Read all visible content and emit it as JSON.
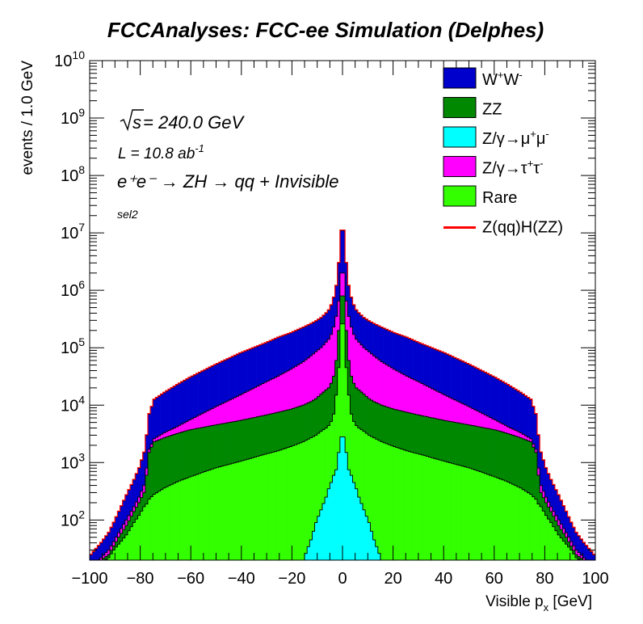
{
  "chart_data": {
    "type": "histogram-stacked",
    "title": "FCCAnalyses: FCC-ee Simulation (Delphes)",
    "xlabel_main": "Visible p",
    "xlabel_sub": "x",
    "xlabel_unit": " [GeV]",
    "ylabel": "events / 1.0 GeV",
    "xlim": [
      -100,
      100
    ],
    "ylim": [
      20,
      10000000000
    ],
    "yscale": "log",
    "bin_width": 1.0,
    "x_ticks": [
      -100,
      -80,
      -60,
      -40,
      -20,
      0,
      20,
      40,
      60,
      80,
      100
    ],
    "x_tick_labels": [
      "−100",
      "−80",
      "−60",
      "−40",
      "−20",
      "0",
      "20",
      "40",
      "60",
      "80",
      "100"
    ],
    "y_tick_exponents": [
      2,
      3,
      4,
      5,
      6,
      7,
      8,
      9,
      10
    ],
    "legend_position": "top-right",
    "annotations": {
      "sqrt_s": "s",
      "energy": " = 240.0 GeV",
      "lumi_base": "L = 10.8 ab",
      "lumi_exp": "-1",
      "process": "e⁺e⁻ → ZH → qq + Invisible",
      "selection": "sel2"
    },
    "cumulative_profiles": {
      "x": [
        0,
        1,
        2,
        3,
        4,
        5,
        6,
        8,
        10,
        12,
        15,
        20,
        25,
        30,
        40,
        50,
        60,
        65,
        70,
        74,
        76,
        77,
        78,
        80,
        82,
        85,
        88,
        90,
        92,
        95,
        98,
        100
      ],
      "Z/gamma->mumu": [
        2800,
        1500,
        750,
        600,
        450,
        350,
        250,
        150,
        90,
        45,
        20
      ],
      "Rare": [
        260000,
        45000,
        15000,
        7000,
        5200,
        4400,
        4000,
        3500,
        3000,
        2700,
        2300,
        1900,
        1600,
        1400,
        1050,
        800,
        560,
        460,
        360,
        280,
        230,
        190,
        170,
        120,
        90,
        55,
        38,
        30,
        22,
        18,
        14,
        12
      ],
      "ZZ": [
        800000,
        200000,
        60000,
        32000,
        24000,
        20000,
        18500,
        15500,
        13000,
        11500,
        10000,
        8500,
        7500,
        6700,
        5400,
        4500,
        3700,
        3200,
        2700,
        2300,
        1500,
        600,
        300,
        200,
        140,
        80,
        50,
        35,
        25,
        20,
        15,
        13
      ],
      "Z/gamma->tautau": [
        2000000,
        650000,
        350000,
        230000,
        170000,
        140000,
        125000,
        100000,
        85000,
        72000,
        57000,
        42000,
        32000,
        25000,
        15000,
        9200,
        5500,
        4200,
        3300,
        2600,
        1700,
        800,
        400,
        250,
        170,
        100,
        60,
        42,
        30,
        22,
        17,
        14
      ],
      "WW": [
        11000000,
        3000000,
        1200000,
        750000,
        550000,
        450000,
        400000,
        330000,
        290000,
        260000,
        225000,
        180000,
        150000,
        120000,
        80000,
        50000,
        30000,
        22500,
        16500,
        12500,
        7000,
        3000,
        1500,
        800,
        500,
        270,
        140,
        90,
        60,
        40,
        28,
        22
      ]
    },
    "series": [
      {
        "name": "W⁺W⁻",
        "label_base": "W",
        "label_sup1": "+",
        "label_mid": "W",
        "label_sup2": "-",
        "color": "#0000cc",
        "kind": "fill"
      },
      {
        "name": "ZZ",
        "label_base": "ZZ",
        "color": "#008800",
        "kind": "fill"
      },
      {
        "name": "Z/γ→μ⁺μ⁻",
        "label_base": "Z/γ→μ",
        "label_sup1": "+",
        "label_mid": "μ",
        "label_sup2": "-",
        "color": "#00ffff",
        "kind": "fill"
      },
      {
        "name": "Z/γ→τ⁺τ⁻",
        "label_base": "Z/γ→τ",
        "label_sup1": "+",
        "label_mid": "τ",
        "label_sup2": "-",
        "color": "#ff00ff",
        "kind": "fill"
      },
      {
        "name": "Rare",
        "label_base": "Rare",
        "color": "#33ff00",
        "kind": "fill"
      },
      {
        "name": "Z(qq)H(ZZ)",
        "label_base": "Z(qq)H(ZZ)",
        "color": "#ff0000",
        "kind": "line"
      }
    ]
  }
}
